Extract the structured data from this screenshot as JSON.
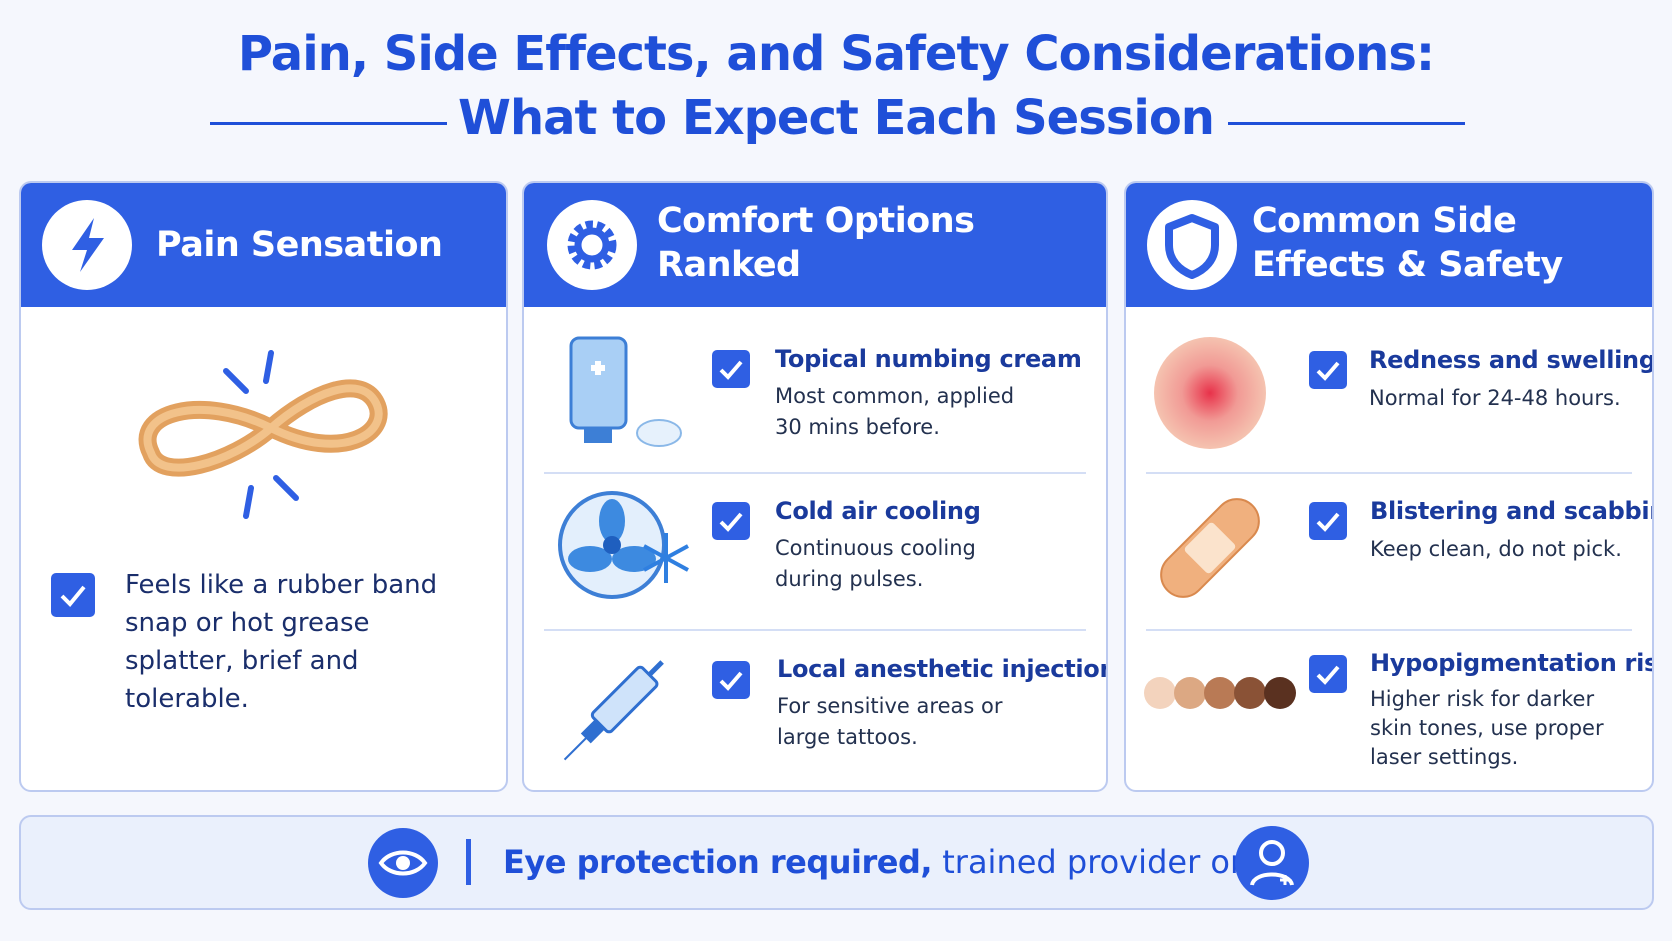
{
  "header": {
    "title_line1": "Pain, Side Effects, and Safety Considerations:",
    "title_line2": "What to Expect Each Session"
  },
  "panels": [
    {
      "title": "Pain Sensation",
      "items": [
        {
          "text": "Feels like a rubber band snap or hot grease splatter, brief and tolerable."
        }
      ]
    },
    {
      "title": "Comfort Options Ranked",
      "items": [
        {
          "title": "Topical numbing cream",
          "text": "Most common, applied 30 mins before."
        },
        {
          "title": "Cold air cooling",
          "text": "Continuous cooling during pulses."
        },
        {
          "title": "Local anesthetic injection",
          "text": "For sensitive areas or large tattoos."
        }
      ]
    },
    {
      "title": "Common Side Effects & Safety",
      "items": [
        {
          "title": "Redness and swelling",
          "text": "Normal for 24-48 hours."
        },
        {
          "title": "Blistering and scabbing",
          "text": "Keep clean, do not pick."
        },
        {
          "title": "Hypopigmentation risk",
          "text": "Higher risk for darker skin tones, use proper laser settings."
        }
      ]
    }
  ],
  "footer": {
    "bold": "Eye protection required,",
    "text": "trained provider only."
  }
}
